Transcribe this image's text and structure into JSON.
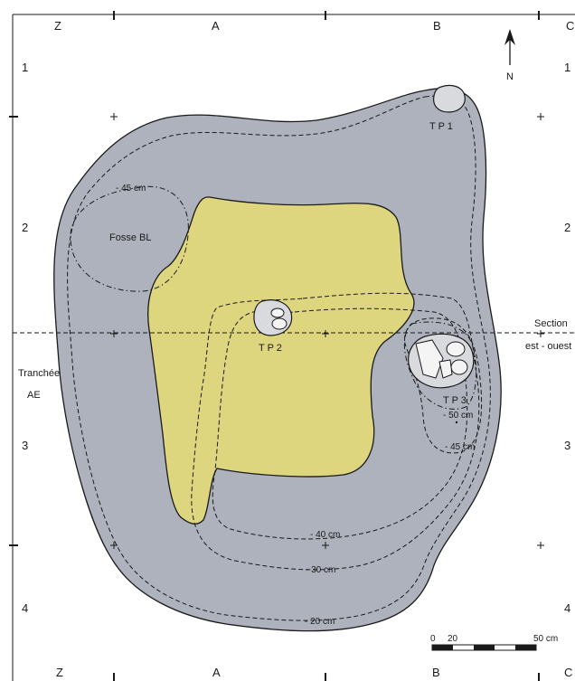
{
  "grid": {
    "columns_top": [
      "Z",
      "A",
      "B",
      "C"
    ],
    "columns_bottom": [
      "Z",
      "A",
      "B",
      "C"
    ],
    "rows_left": [
      "1",
      "2",
      "3",
      "4"
    ],
    "rows_right": [
      "1",
      "2",
      "3",
      "4"
    ]
  },
  "north": "N",
  "features": {
    "tp1": "T P 1",
    "tp2": "T P 2",
    "tp3": "T P 3",
    "fosse": "Fosse BL",
    "tranchee_line1": "Tranchée",
    "tranchee_line2": "AE",
    "section_line1": "Section",
    "section_line2": "est - ouest"
  },
  "contours": {
    "m45_fosse": "- 45 cm",
    "m50": "- 50 cm",
    "m45_tp3": "- 45 cm",
    "m40": "- 40 cm",
    "m30": "- 30 cm",
    "m20": "- 20 cm"
  },
  "scale": {
    "zero": "0",
    "twenty": "20",
    "fifty": "50 cm"
  },
  "colors": {
    "pit_fill": "#aeb2bd",
    "yellow_fill": "#ddd67f",
    "stone_fill": "#d9dadd",
    "stone_inner": "#f4f4f4",
    "outline": "#1a1a1a"
  }
}
